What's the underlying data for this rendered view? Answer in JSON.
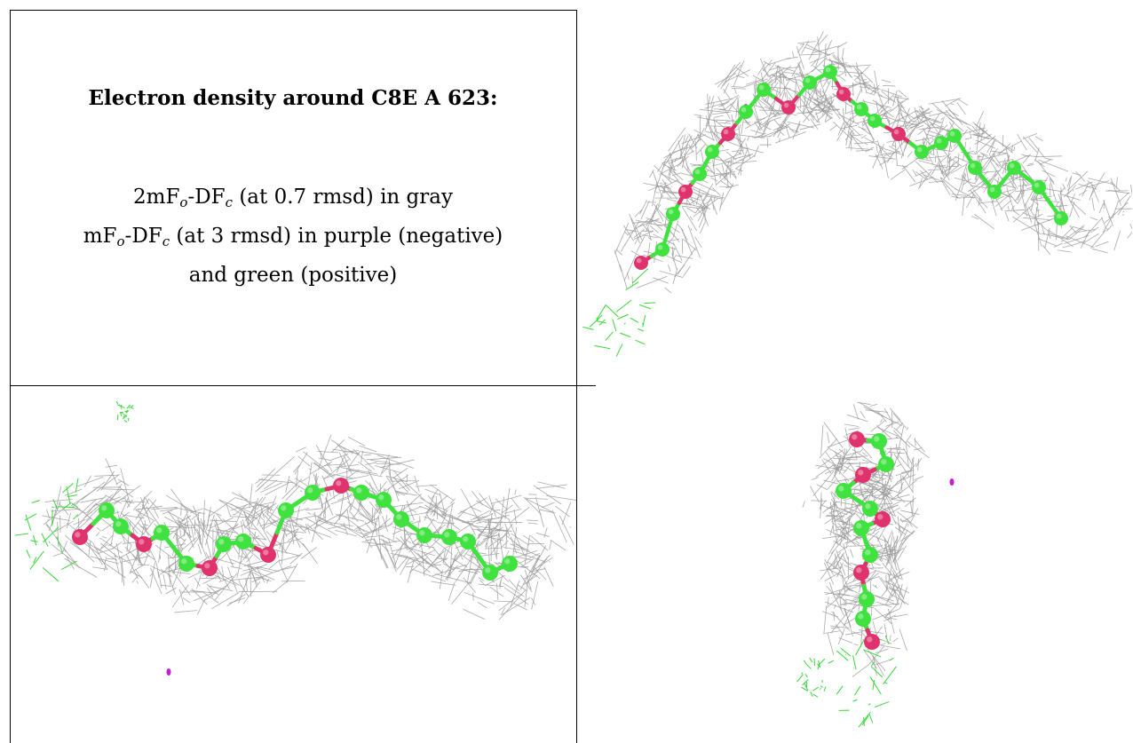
{
  "caption": {
    "title": "Electron density around C8E A 623:",
    "line1": {
      "prefix": "2mF",
      "sub1": "o",
      "mid": "-DF",
      "sub2": "c",
      "suffix": " (at 0.7 rmsd) in gray"
    },
    "line2": {
      "prefix": "mF",
      "sub1": "o",
      "mid": "-DF",
      "sub2": "c",
      "suffix": " (at 3 rmsd) in purple (negative)"
    },
    "line3": "and green (positive)"
  },
  "colors": {
    "mesh_gray": "#9a9a9a",
    "carbon_green": "#3fe23f",
    "oxygen_pink": "#e0336e",
    "negative_purple": "#c21fd0",
    "positive_green": "#39d639",
    "border": "#000000"
  },
  "views": [
    {
      "name": "view-top-right",
      "atoms": [
        "O",
        "C",
        "C",
        "O",
        "C",
        "C",
        "O",
        "C",
        "C",
        "O",
        "C",
        "C",
        "O",
        "C",
        "C",
        "O",
        "C",
        "C",
        "C",
        "C",
        "C",
        "C",
        "C",
        "C"
      ]
    },
    {
      "name": "view-bottom-left",
      "atoms": [
        "O",
        "C",
        "C",
        "O",
        "C",
        "C",
        "O",
        "C",
        "C",
        "O",
        "C",
        "C",
        "O",
        "C",
        "C",
        "C",
        "C",
        "C",
        "C",
        "C",
        "C"
      ]
    },
    {
      "name": "view-bottom-right",
      "atoms": [
        "O",
        "C",
        "C",
        "O",
        "C",
        "C",
        "O",
        "C",
        "C",
        "O",
        "C",
        "C",
        "O"
      ]
    }
  ]
}
